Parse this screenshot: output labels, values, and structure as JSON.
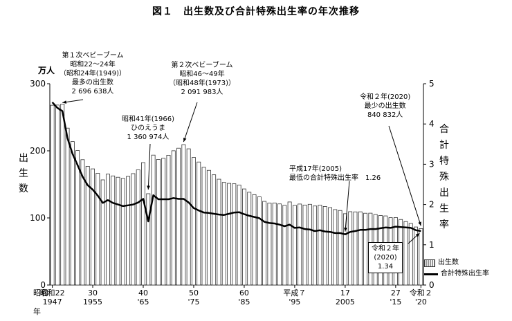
{
  "title": "図１　出生数及び合計特殊出生率の年次推移",
  "left_unit": "万人",
  "left_axis_label": [
    "出",
    "生",
    "数"
  ],
  "right_axis_label": [
    "合",
    "計",
    "特",
    "殊",
    "出",
    "生",
    "率"
  ],
  "legend": {
    "births": "出生数",
    "tfr": "合計特殊出生率"
  },
  "annotations": {
    "boom1": [
      "第１次ベビーブーム",
      "昭和22～24年",
      "（昭和24年(1949)）",
      "最多の出生数",
      "2 696 638人"
    ],
    "hinoe": [
      "昭和41年(1966)",
      "ひのえうま",
      "1 360 974人"
    ],
    "boom2": [
      "第２次ベビーブーム",
      "昭和46～49年",
      "（昭和48年(1973)）",
      "2 091 983人"
    ],
    "h17": [
      "平成17年(2005)",
      "最低の合計特殊出生率　1.26"
    ],
    "r2_births": [
      "令和２年(2020)",
      "最少の出生数",
      "840 832人"
    ],
    "r2_tfr": [
      "令和２年",
      "(2020)",
      "1.34"
    ]
  },
  "x_ticks_top": [
    "昭和22",
    "30",
    "40",
    "50",
    "60",
    "平成７",
    "17",
    "27",
    "令和２"
  ],
  "x_ticks_bottom": [
    "1947",
    "1955",
    "'65",
    "'75",
    "'85",
    "'95",
    "2005",
    "'15",
    "'20"
  ],
  "x_era_prefix": "昭和",
  "x_year_suffix": "年",
  "chart_data": {
    "type": "bar",
    "ylabel": "万人",
    "ylim": [
      0,
      300
    ],
    "y2lim": [
      0,
      5
    ],
    "yticks": [
      0,
      100,
      200,
      300
    ],
    "y2ticks": [
      0,
      1,
      2,
      3,
      4,
      5
    ],
    "x": [
      1947,
      1948,
      1949,
      1950,
      1951,
      1952,
      1953,
      1954,
      1955,
      1956,
      1957,
      1958,
      1959,
      1960,
      1961,
      1962,
      1963,
      1964,
      1965,
      1966,
      1967,
      1968,
      1969,
      1970,
      1971,
      1972,
      1973,
      1974,
      1975,
      1976,
      1977,
      1978,
      1979,
      1980,
      1981,
      1982,
      1983,
      1984,
      1985,
      1986,
      1987,
      1988,
      1989,
      1990,
      1991,
      1992,
      1993,
      1994,
      1995,
      1996,
      1997,
      1998,
      1999,
      2000,
      2001,
      2002,
      2003,
      2004,
      2005,
      2006,
      2007,
      2008,
      2009,
      2010,
      2011,
      2012,
      2013,
      2014,
      2015,
      2016,
      2017,
      2018,
      2019,
      2020
    ],
    "series": [
      {
        "name": "出生数",
        "type": "bar",
        "values": [
          267.9,
          268.2,
          269.7,
          233.8,
          213.8,
          200.5,
          186.8,
          176.9,
          173.1,
          166.5,
          156.7,
          165.3,
          162.6,
          160.6,
          158.9,
          161.9,
          166,
          171.7,
          182.4,
          136.1,
          193.6,
          187.2,
          188.9,
          193.4,
          200.1,
          203.9,
          209.2,
          203,
          190.1,
          183.3,
          175.5,
          170.9,
          164.3,
          157.7,
          152.9,
          151.5,
          150.9,
          149,
          143.2,
          138.3,
          134.7,
          131.4,
          124.7,
          122.2,
          122.3,
          120.9,
          118.8,
          123.8,
          118.7,
          120.7,
          119.2,
          120.3,
          117.8,
          119.1,
          117.1,
          115.4,
          112.4,
          111.1,
          106.3,
          109.3,
          109,
          109.1,
          107,
          107.1,
          105.1,
          103.7,
          103,
          100.4,
          100.6,
          97.7,
          94.6,
          91.8,
          86.5,
          84.1
        ]
      },
      {
        "name": "合計特殊出生率",
        "type": "line",
        "values": [
          4.54,
          4.4,
          4.32,
          3.65,
          3.26,
          2.98,
          2.69,
          2.48,
          2.37,
          2.22,
          2.04,
          2.11,
          2.04,
          2.0,
          1.96,
          1.98,
          2.0,
          2.05,
          2.14,
          1.58,
          2.23,
          2.13,
          2.13,
          2.13,
          2.16,
          2.14,
          2.14,
          2.05,
          1.91,
          1.85,
          1.8,
          1.79,
          1.77,
          1.75,
          1.74,
          1.77,
          1.8,
          1.81,
          1.76,
          1.72,
          1.69,
          1.66,
          1.57,
          1.54,
          1.53,
          1.5,
          1.46,
          1.5,
          1.42,
          1.43,
          1.39,
          1.38,
          1.34,
          1.36,
          1.33,
          1.32,
          1.29,
          1.29,
          1.26,
          1.32,
          1.34,
          1.37,
          1.37,
          1.39,
          1.39,
          1.41,
          1.43,
          1.42,
          1.45,
          1.44,
          1.43,
          1.42,
          1.36,
          1.34
        ]
      }
    ]
  }
}
